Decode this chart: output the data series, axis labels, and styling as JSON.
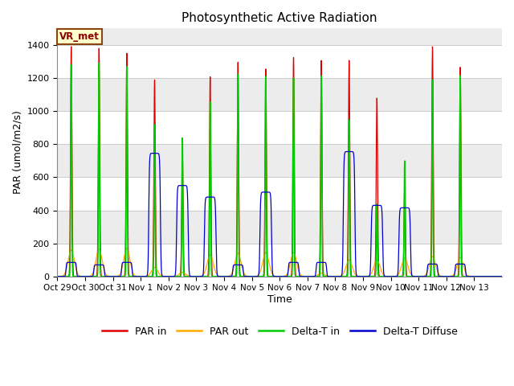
{
  "title": "Photosynthetic Active Radiation",
  "xlabel": "Time",
  "ylabel": "PAR (umol/m2/s)",
  "ylim": [
    0,
    1500
  ],
  "yticks": [
    0,
    200,
    400,
    600,
    800,
    1000,
    1200,
    1400
  ],
  "series_labels": [
    "PAR in",
    "PAR out",
    "Delta-T in",
    "Delta-T Diffuse"
  ],
  "series_colors": [
    "#dd0000",
    "#ffaa00",
    "#00cc00",
    "#0000cc"
  ],
  "vr_met_label": "VR_met",
  "days": [
    {
      "label": "Oct 29",
      "par_in_peak": 1390,
      "par_out_peak": 160,
      "dtin_peak": 1280,
      "dtd_flat": 85,
      "dtd_cloudy": false
    },
    {
      "label": "Oct 30",
      "par_in_peak": 1380,
      "par_out_peak": 165,
      "dtin_peak": 1290,
      "dtd_flat": 70,
      "dtd_cloudy": false
    },
    {
      "label": "Oct 31",
      "par_in_peak": 1350,
      "par_out_peak": 170,
      "dtin_peak": 1270,
      "dtd_flat": 85,
      "dtd_cloudy": false
    },
    {
      "label": "Nov 1",
      "par_in_peak": 1190,
      "par_out_peak": 55,
      "dtin_peak": 920,
      "dtd_flat": 745,
      "dtd_cloudy": true
    },
    {
      "label": "Nov 2",
      "par_in_peak": 750,
      "par_out_peak": 25,
      "dtin_peak": 840,
      "dtd_flat": 550,
      "dtd_cloudy": true
    },
    {
      "label": "Nov 3",
      "par_in_peak": 1210,
      "par_out_peak": 130,
      "dtin_peak": 1060,
      "dtd_flat": 480,
      "dtd_cloudy": true
    },
    {
      "label": "Nov 4",
      "par_in_peak": 1300,
      "par_out_peak": 140,
      "dtin_peak": 1230,
      "dtd_flat": 70,
      "dtd_cloudy": false
    },
    {
      "label": "Nov 5",
      "par_in_peak": 1260,
      "par_out_peak": 145,
      "dtin_peak": 1220,
      "dtd_flat": 510,
      "dtd_cloudy": true
    },
    {
      "label": "Nov 6",
      "par_in_peak": 1330,
      "par_out_peak": 145,
      "dtin_peak": 1210,
      "dtd_flat": 85,
      "dtd_cloudy": false
    },
    {
      "label": "Nov 7",
      "par_in_peak": 1310,
      "par_out_peak": 20,
      "dtin_peak": 1220,
      "dtd_flat": 85,
      "dtd_cloudy": false
    },
    {
      "label": "Nov 8",
      "par_in_peak": 1310,
      "par_out_peak": 100,
      "dtin_peak": 950,
      "dtd_flat": 755,
      "dtd_cloudy": true
    },
    {
      "label": "Nov 9",
      "par_in_peak": 1080,
      "par_out_peak": 100,
      "dtin_peak": 440,
      "dtd_flat": 430,
      "dtd_cloudy": true
    },
    {
      "label": "Nov 10",
      "par_in_peak": 550,
      "par_out_peak": 110,
      "dtin_peak": 700,
      "dtd_flat": 415,
      "dtd_cloudy": true
    },
    {
      "label": "Nov 11",
      "par_in_peak": 1390,
      "par_out_peak": 120,
      "dtin_peak": 1190,
      "dtd_flat": 75,
      "dtd_cloudy": false
    },
    {
      "label": "Nov 12",
      "par_in_peak": 1265,
      "par_out_peak": 115,
      "dtin_peak": 1215,
      "dtd_flat": 75,
      "dtd_cloudy": false
    },
    {
      "label": "Nov 13",
      "par_in_peak": 0,
      "par_out_peak": 0,
      "dtin_peak": 0,
      "dtd_flat": 0,
      "dtd_cloudy": false
    }
  ],
  "xtick_labels": [
    "Oct 29",
    "Oct 30",
    "Oct 31",
    "Nov 1",
    "Nov 2",
    "Nov 3",
    "Nov 4",
    "Nov 5",
    "Nov 6",
    "Nov 7",
    "Nov 8",
    "Nov 9",
    "Nov 10",
    "Nov 11",
    "Nov 12",
    "Nov 13"
  ],
  "figsize": [
    6.4,
    4.8
  ],
  "dpi": 100
}
